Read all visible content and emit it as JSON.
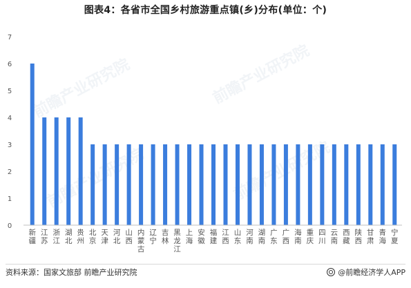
{
  "title": "图表4：各省市全国乡村旅游重点镇(乡)分布(单位：个)",
  "source": "资料来源：国家文旅部 前瞻产业研究院",
  "brand": "@前瞻经济学人APP",
  "watermark": "前瞻产业研究院",
  "colors": {
    "bar": "#3b7ddd",
    "axis": "#bfbfbf",
    "tick": "#555555"
  },
  "chart_data": {
    "type": "bar",
    "categories": [
      "新疆",
      "江苏",
      "浙江",
      "湖北",
      "贵州",
      "北京",
      "天津",
      "河北",
      "山西",
      "内蒙古",
      "辽宁",
      "吉林",
      "黑龙江",
      "上海",
      "安徽",
      "福建",
      "江西",
      "山东",
      "河南",
      "湖南",
      "广东",
      "广西",
      "海南",
      "重庆",
      "四川",
      "云南",
      "西藏",
      "陕西",
      "甘肃",
      "青海",
      "宁夏"
    ],
    "values": [
      6,
      4,
      4,
      4,
      4,
      3,
      3,
      3,
      3,
      3,
      3,
      3,
      3,
      3,
      3,
      3,
      3,
      3,
      3,
      3,
      3,
      3,
      3,
      3,
      3,
      3,
      3,
      3,
      3,
      3,
      3
    ],
    "ylim": [
      0,
      7
    ],
    "yticks": [
      0,
      1,
      2,
      3,
      4,
      5,
      6,
      7
    ],
    "xlabel": "",
    "ylabel": "",
    "grid": false
  }
}
